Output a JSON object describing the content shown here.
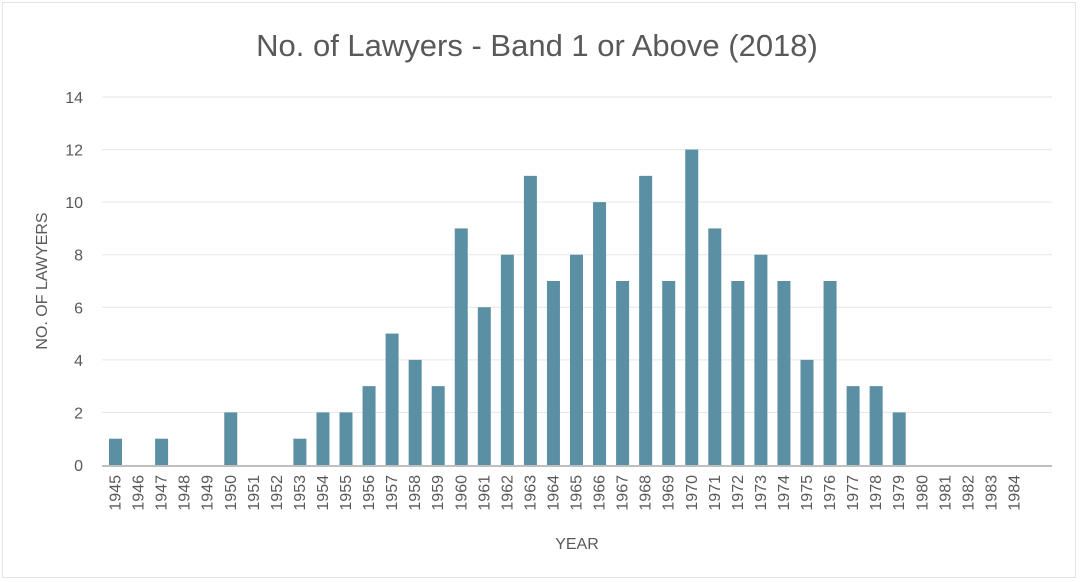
{
  "chart_data": {
    "type": "bar",
    "title": "No. of Lawyers - Band 1 or Above (2018)",
    "xlabel": "YEAR",
    "ylabel": "NO. OF LAWYERS",
    "ylim": [
      0,
      14
    ],
    "yticks": [
      0,
      2,
      4,
      6,
      8,
      10,
      12,
      14
    ],
    "grid": true,
    "legend": "none",
    "bar_color": "#5b8fa3",
    "categories": [
      "1945",
      "1946",
      "1947",
      "1948",
      "1949",
      "1950",
      "1951",
      "1952",
      "1953",
      "1954",
      "1955",
      "1956",
      "1957",
      "1958",
      "1959",
      "1960",
      "1961",
      "1962",
      "1963",
      "1964",
      "1965",
      "1966",
      "1967",
      "1968",
      "1969",
      "1970",
      "1971",
      "1972",
      "1973",
      "1974",
      "1975",
      "1976",
      "1977",
      "1978",
      "1979",
      "1980",
      "1981",
      "1982",
      "1983",
      "1984"
    ],
    "values": [
      1,
      0,
      1,
      0,
      0,
      2,
      0,
      0,
      1,
      2,
      2,
      3,
      5,
      4,
      3,
      9,
      6,
      8,
      11,
      7,
      8,
      10,
      7,
      11,
      7,
      12,
      9,
      7,
      8,
      7,
      4,
      7,
      3,
      3,
      2,
      0,
      0,
      0,
      0,
      0
    ]
  }
}
